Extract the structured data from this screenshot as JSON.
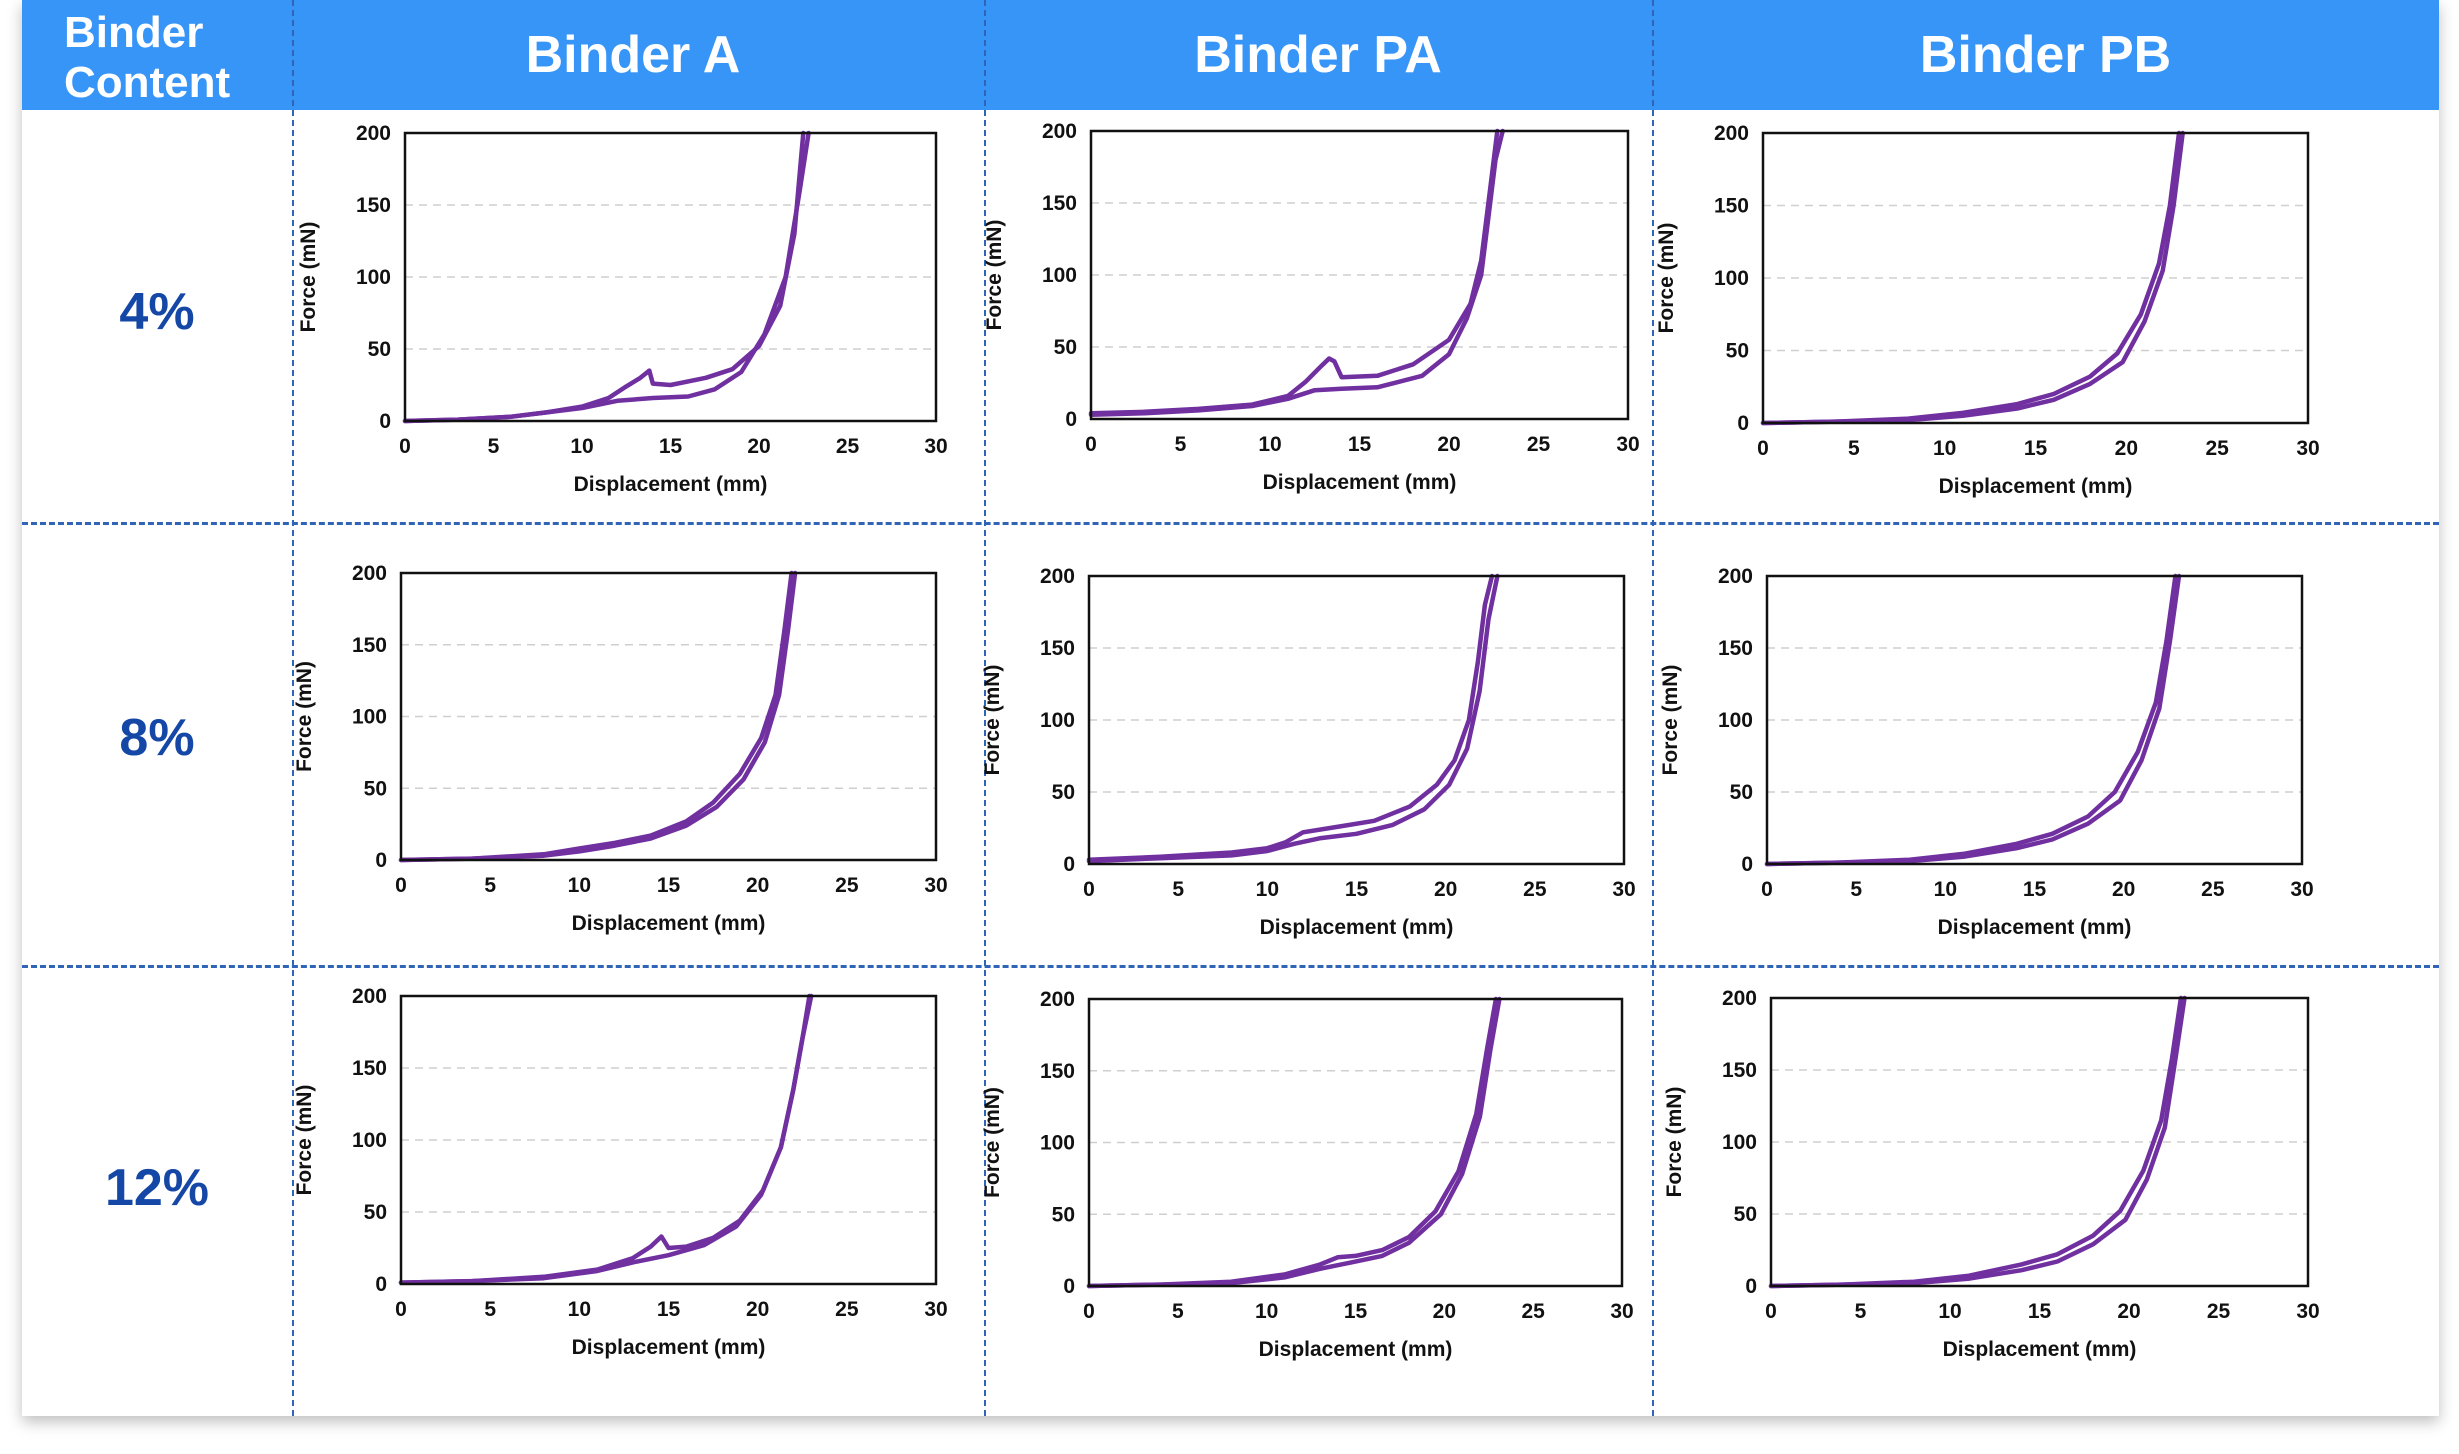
{
  "header": {
    "corner_label": "Binder Content",
    "columns": [
      "Binder A",
      "Binder PA",
      "Binder PB"
    ]
  },
  "rows": [
    "4%",
    "8%",
    "12%"
  ],
  "colors": {
    "header": "#3795f8",
    "row_label": "#1547a6",
    "divider": "#2f64b7",
    "series": "#7030a0"
  },
  "chart_data": [
    {
      "id": "A-4",
      "type": "line",
      "xlabel": "Displacement (mm)",
      "ylabel": "Force (mN)",
      "xlim": [
        0,
        30
      ],
      "ylim": [
        0,
        200
      ],
      "xticks": [
        0,
        5,
        10,
        15,
        20,
        25,
        30
      ],
      "yticks": [
        0,
        50,
        100,
        150,
        200
      ],
      "grid": "horizontal dashed",
      "series": [
        {
          "x": [
            0,
            3,
            6,
            8,
            10,
            11.5,
            12.5,
            13.3,
            13.8,
            14,
            15,
            17,
            18.5,
            20,
            21.2,
            22,
            22.5
          ],
          "y": [
            0,
            1,
            3,
            6,
            10,
            16,
            24,
            30,
            35,
            26,
            25,
            30,
            36,
            52,
            80,
            130,
            200
          ]
        },
        {
          "x": [
            0,
            3,
            6,
            8,
            10,
            12,
            14,
            16,
            17.5,
            19,
            20.3,
            21.5,
            22.3,
            22.8
          ],
          "y": [
            0,
            1,
            3,
            6,
            9,
            14,
            16,
            17,
            22,
            34,
            60,
            100,
            160,
            200
          ]
        }
      ]
    },
    {
      "id": "PA-4",
      "type": "line",
      "xlabel": "Displacement (mm)",
      "ylabel": "Force (mN)",
      "xlim": [
        0,
        30
      ],
      "ylim": [
        0,
        200
      ],
      "xticks": [
        0,
        5,
        10,
        15,
        20,
        25,
        30
      ],
      "yticks": [
        0,
        50,
        100,
        150,
        200
      ],
      "grid": "horizontal dashed",
      "series": [
        {
          "x": [
            0,
            3,
            6,
            9,
            11,
            12,
            12.8,
            13.3,
            13.6,
            14,
            16,
            18,
            20,
            21.2,
            21.8,
            22.3,
            22.7
          ],
          "y": [
            4,
            5,
            7,
            10,
            16,
            26,
            36,
            42,
            40,
            29,
            30,
            38,
            55,
            80,
            110,
            160,
            200
          ]
        },
        {
          "x": [
            0,
            3,
            6,
            9,
            11,
            12.5,
            14,
            16,
            18.5,
            20,
            21,
            21.8,
            22.2,
            22.6,
            23
          ],
          "y": [
            3,
            4,
            6,
            9,
            14,
            20,
            21,
            22,
            30,
            45,
            70,
            100,
            140,
            180,
            200
          ]
        }
      ]
    },
    {
      "id": "PB-4",
      "type": "line",
      "xlabel": "Displacement (mm)",
      "ylabel": "Force (mN)",
      "xlim": [
        0,
        30
      ],
      "ylim": [
        0,
        200
      ],
      "xticks": [
        0,
        5,
        10,
        15,
        20,
        25,
        30
      ],
      "yticks": [
        0,
        50,
        100,
        150,
        200
      ],
      "grid": "horizontal dashed",
      "series": [
        {
          "x": [
            0,
            4,
            8,
            11,
            14,
            16,
            18,
            19.5,
            20.8,
            21.8,
            22.4,
            22.9
          ],
          "y": [
            0,
            1,
            3,
            7,
            13,
            20,
            32,
            48,
            75,
            110,
            150,
            200
          ]
        },
        {
          "x": [
            0,
            4,
            8,
            11,
            14,
            16,
            18,
            19.8,
            21,
            22,
            22.6,
            23.1
          ],
          "y": [
            0,
            1,
            2,
            5,
            10,
            16,
            27,
            42,
            70,
            105,
            150,
            200
          ]
        }
      ]
    },
    {
      "id": "A-8",
      "type": "line",
      "xlabel": "Displacement (mm)",
      "ylabel": "Force (mN)",
      "xlim": [
        0,
        30
      ],
      "ylim": [
        0,
        200
      ],
      "xticks": [
        0,
        5,
        10,
        15,
        20,
        25,
        30
      ],
      "yticks": [
        0,
        50,
        100,
        150,
        200
      ],
      "grid": "horizontal dashed",
      "series": [
        {
          "x": [
            0,
            4,
            8,
            10,
            12,
            14,
            16,
            17.5,
            19,
            20.2,
            21,
            21.5,
            21.9
          ],
          "y": [
            0,
            1,
            4,
            8,
            12,
            17,
            27,
            40,
            60,
            85,
            115,
            160,
            200
          ]
        },
        {
          "x": [
            0,
            4,
            8,
            10,
            12,
            14,
            16,
            17.7,
            19.2,
            20.4,
            21.2,
            21.7,
            22.1
          ],
          "y": [
            0,
            1,
            3,
            6,
            10,
            15,
            24,
            37,
            56,
            82,
            115,
            160,
            200
          ]
        }
      ]
    },
    {
      "id": "PA-8",
      "type": "line",
      "xlabel": "Displacement (mm)",
      "ylabel": "Force (mN)",
      "xlim": [
        0,
        30
      ],
      "ylim": [
        0,
        200
      ],
      "xticks": [
        0,
        5,
        10,
        15,
        20,
        25,
        30
      ],
      "yticks": [
        0,
        50,
        100,
        150,
        200
      ],
      "grid": "horizontal dashed",
      "series": [
        {
          "x": [
            0,
            4,
            8,
            10,
            11,
            12,
            14,
            16,
            18,
            19.5,
            20.5,
            21.3,
            21.8,
            22.2,
            22.6
          ],
          "y": [
            3,
            5,
            8,
            11,
            15,
            22,
            26,
            30,
            40,
            55,
            72,
            100,
            140,
            180,
            200
          ]
        },
        {
          "x": [
            0,
            4,
            8,
            10,
            11.5,
            13,
            15,
            17,
            18.8,
            20.2,
            21.2,
            21.9,
            22.4,
            22.9
          ],
          "y": [
            2,
            4,
            6,
            9,
            14,
            18,
            21,
            27,
            38,
            55,
            80,
            120,
            170,
            200
          ]
        }
      ]
    },
    {
      "id": "PB-8",
      "type": "line",
      "xlabel": "Displacement (mm)",
      "ylabel": "Force (mN)",
      "xlim": [
        0,
        30
      ],
      "ylim": [
        0,
        200
      ],
      "xticks": [
        0,
        5,
        10,
        15,
        20,
        25,
        30
      ],
      "yticks": [
        0,
        50,
        100,
        150,
        200
      ],
      "grid": "horizontal dashed",
      "series": [
        {
          "x": [
            0,
            4,
            8,
            11,
            14,
            16,
            18,
            19.5,
            20.8,
            21.8,
            22.4,
            22.9
          ],
          "y": [
            0,
            1,
            3,
            7,
            14,
            21,
            33,
            50,
            78,
            112,
            155,
            200
          ]
        },
        {
          "x": [
            0,
            4,
            8,
            11,
            14,
            16,
            18,
            19.8,
            21,
            22,
            22.6,
            23.1
          ],
          "y": [
            0,
            1,
            2,
            5,
            11,
            17,
            28,
            44,
            72,
            108,
            155,
            200
          ]
        }
      ]
    },
    {
      "id": "A-12",
      "type": "line",
      "xlabel": "Displacement (mm)",
      "ylabel": "Force (mN)",
      "xlim": [
        0,
        30
      ],
      "ylim": [
        0,
        200
      ],
      "xticks": [
        0,
        5,
        10,
        15,
        20,
        25,
        30
      ],
      "yticks": [
        0,
        50,
        100,
        150,
        200
      ],
      "grid": "horizontal dashed",
      "series": [
        {
          "x": [
            0,
            4,
            8,
            11,
            13,
            14,
            14.6,
            15,
            16,
            17.5,
            19,
            20.3,
            21.3,
            22,
            22.5,
            22.9
          ],
          "y": [
            1,
            2,
            5,
            10,
            18,
            26,
            33,
            25,
            26,
            32,
            44,
            65,
            95,
            135,
            170,
            200
          ]
        },
        {
          "x": [
            0,
            4,
            8,
            11,
            13,
            15,
            17,
            18.8,
            20.2,
            21.3,
            22,
            22.5,
            23
          ],
          "y": [
            1,
            2,
            4,
            9,
            15,
            20,
            27,
            40,
            62,
            95,
            135,
            170,
            200
          ]
        }
      ]
    },
    {
      "id": "PA-12",
      "type": "line",
      "xlabel": "Displacement (mm)",
      "ylabel": "Force (mN)",
      "xlim": [
        0,
        30
      ],
      "ylim": [
        0,
        200
      ],
      "xticks": [
        0,
        5,
        10,
        15,
        20,
        25,
        30
      ],
      "yticks": [
        0,
        50,
        100,
        150,
        200
      ],
      "grid": "horizontal dashed",
      "series": [
        {
          "x": [
            0,
            4,
            8,
            11,
            13,
            14,
            15,
            16.5,
            18,
            19.5,
            20.8,
            21.8,
            22.4,
            22.9
          ],
          "y": [
            0,
            1,
            3,
            8,
            15,
            20,
            21,
            25,
            34,
            52,
            80,
            120,
            165,
            200
          ]
        },
        {
          "x": [
            0,
            4,
            8,
            11,
            13,
            15,
            16.5,
            18,
            19.8,
            21,
            22,
            22.6,
            23.1
          ],
          "y": [
            0,
            1,
            2,
            6,
            12,
            17,
            21,
            30,
            50,
            78,
            118,
            165,
            200
          ]
        }
      ]
    },
    {
      "id": "PB-12",
      "type": "line",
      "xlabel": "Displacement (mm)",
      "ylabel": "Force (mN)",
      "xlim": [
        0,
        30
      ],
      "ylim": [
        0,
        200
      ],
      "xticks": [
        0,
        5,
        10,
        15,
        20,
        25,
        30
      ],
      "yticks": [
        0,
        50,
        100,
        150,
        200
      ],
      "grid": "horizontal dashed",
      "series": [
        {
          "x": [
            0,
            4,
            8,
            11,
            14,
            16,
            18,
            19.5,
            20.8,
            21.8,
            22.4,
            22.9
          ],
          "y": [
            0,
            1,
            3,
            7,
            15,
            22,
            35,
            52,
            80,
            115,
            158,
            200
          ]
        },
        {
          "x": [
            0,
            4,
            8,
            11,
            14,
            16,
            18,
            19.8,
            21,
            22,
            22.6,
            23.1
          ],
          "y": [
            0,
            1,
            2,
            5,
            11,
            17,
            29,
            46,
            74,
            110,
            158,
            200
          ]
        }
      ]
    }
  ]
}
